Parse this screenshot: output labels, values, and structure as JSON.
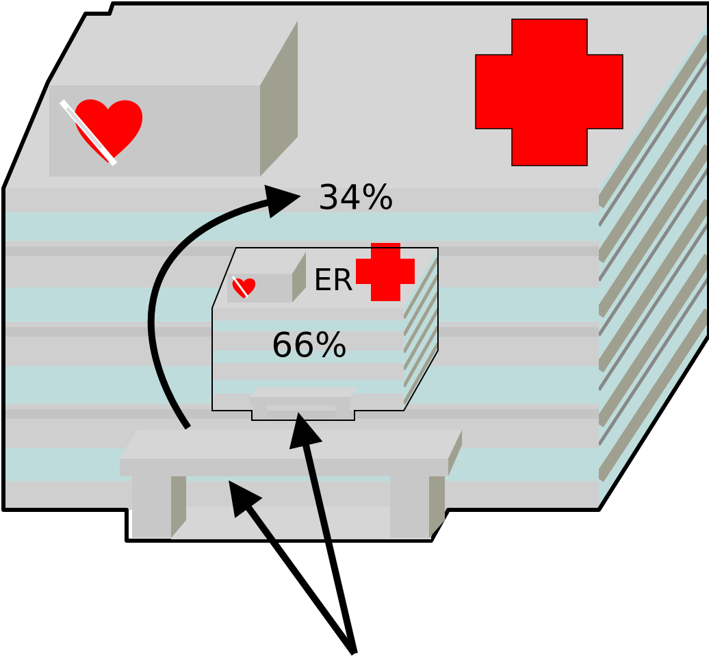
{
  "main_building": {
    "share_label": "34%"
  },
  "er_building": {
    "name": "ER",
    "share_label": "66%"
  }
}
